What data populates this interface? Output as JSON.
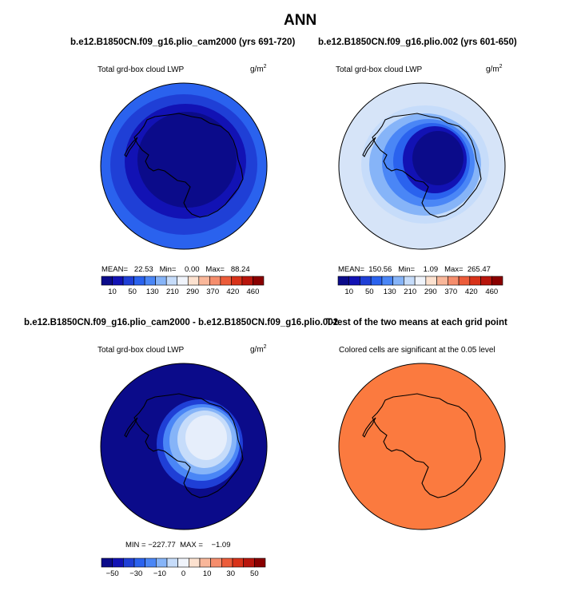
{
  "title": "ANN",
  "panels": [
    {
      "run": "b.e12.B1850CN.f09_g16.plio_cam2000 (yrs 691-720)",
      "variable": "Total grd-box cloud LWP",
      "units": "g/m",
      "units_exp": "2",
      "stats": "MEAN=   22.53   Min=    0.00   Max=   88.24",
      "colorbar_labels": [
        "10",
        "50",
        "130",
        "210",
        "290",
        "370",
        "420",
        "460"
      ]
    },
    {
      "run": "b.e12.B1850CN.f09_g16.plio.002 (yrs 601-650)",
      "variable": "Total grd-box cloud LWP",
      "units": "g/m",
      "units_exp": "2",
      "stats": "MEAN=  150.56   Min=    1.09   Max=  265.47",
      "colorbar_labels": [
        "10",
        "50",
        "130",
        "210",
        "290",
        "370",
        "420",
        "460"
      ]
    },
    {
      "run": "b.e12.B1850CN.f09_g16.plio_cam2000 - b.e12.B1850CN.f09_g16.plio.002",
      "variable": "Total grd-box cloud LWP",
      "units": "g/m",
      "units_exp": "2",
      "stats": "MIN = −227.77  MAX =    −1.09",
      "colorbar_labels": [
        "−50",
        "−30",
        "−10",
        "0",
        "10",
        "30",
        "50"
      ]
    },
    {
      "run": "T-test of the two means at each grid point",
      "variable": "Colored cells are significant at the 0.05 level"
    }
  ],
  "colors": {
    "abs_scale": [
      "#0b0b8a",
      "#1212b4",
      "#1f3fd6",
      "#2a62ee",
      "#4a86f6",
      "#86b4f8",
      "#c6dcfa",
      "#f0f4fb",
      "#fce1cf",
      "#f9b79a",
      "#f58d6c",
      "#ec5c3a",
      "#d83219",
      "#b8150c",
      "#8a0000"
    ],
    "diff_scale": [
      "#0b0b8a",
      "#1212b4",
      "#1f3fd6",
      "#2a62ee",
      "#4a86f6",
      "#86b4f8",
      "#c6dcfa",
      "#f0f4fb",
      "#fce1cf",
      "#f9b79a",
      "#f58d6c",
      "#ec5c3a",
      "#d83219",
      "#b8150c",
      "#8a0000"
    ],
    "significance": "#fb7a3f",
    "coast": "#000000"
  }
}
